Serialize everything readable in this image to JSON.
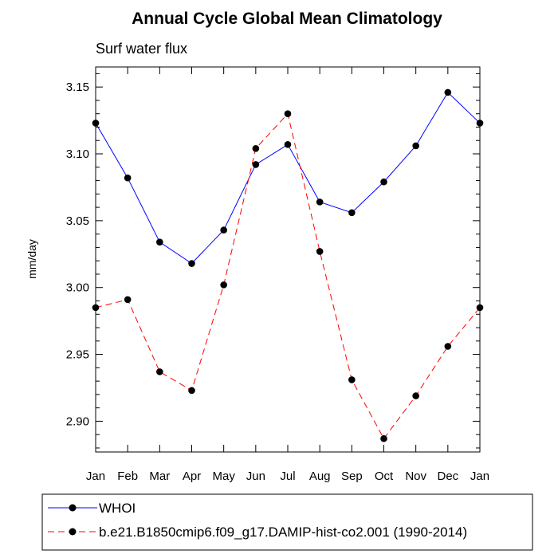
{
  "chart_data": {
    "type": "line",
    "title": "Annual Cycle Global Mean Climatology",
    "subtitle": "Surf water flux",
    "xlabel": "",
    "ylabel": "mm/day",
    "categories": [
      "Jan",
      "Feb",
      "Mar",
      "Apr",
      "May",
      "Jun",
      "Jul",
      "Aug",
      "Sep",
      "Oct",
      "Nov",
      "Dec",
      "Jan"
    ],
    "ylim": [
      2.877,
      3.165
    ],
    "yticks": [
      2.9,
      2.95,
      3.0,
      3.05,
      3.1,
      3.15
    ],
    "ytick_labels": [
      "2.90",
      "2.95",
      "3.00",
      "3.05",
      "3.10",
      "3.15"
    ],
    "series": [
      {
        "name": "WHOI",
        "color": "#0000ff",
        "dash": "solid",
        "values": [
          3.123,
          3.082,
          3.034,
          3.018,
          3.043,
          3.092,
          3.107,
          3.064,
          3.056,
          3.079,
          3.106,
          3.146,
          3.123
        ]
      },
      {
        "name": "b.e21.B1850cmip6.f09_g17.DAMIP-hist-co2.001 (1990-2014)",
        "color": "#ff0000",
        "dash": "dashed",
        "values": [
          2.985,
          2.991,
          2.937,
          2.923,
          3.002,
          3.104,
          3.13,
          3.027,
          2.931,
          2.887,
          2.919,
          2.956,
          2.985
        ]
      }
    ],
    "legend_position": "bottom"
  }
}
